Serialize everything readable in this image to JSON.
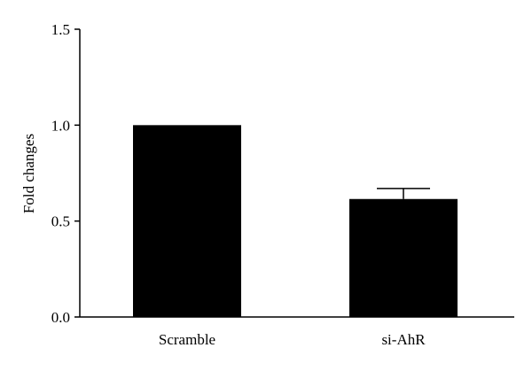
{
  "chart_data": {
    "type": "bar",
    "title": "",
    "xlabel": "",
    "ylabel": "Fold changes",
    "categories": [
      "Scramble",
      "si-AhR"
    ],
    "values": [
      1.0,
      0.615
    ],
    "error_upper": [
      0.0,
      0.055
    ],
    "ylim": [
      0.0,
      1.5
    ],
    "yticks": [
      0.0,
      0.5,
      1.0,
      1.5
    ],
    "ytick_labels": [
      "0.0",
      "0.5",
      "1.0",
      "1.5"
    ],
    "grid": false,
    "legend": "none",
    "bar_color": "#000000"
  }
}
